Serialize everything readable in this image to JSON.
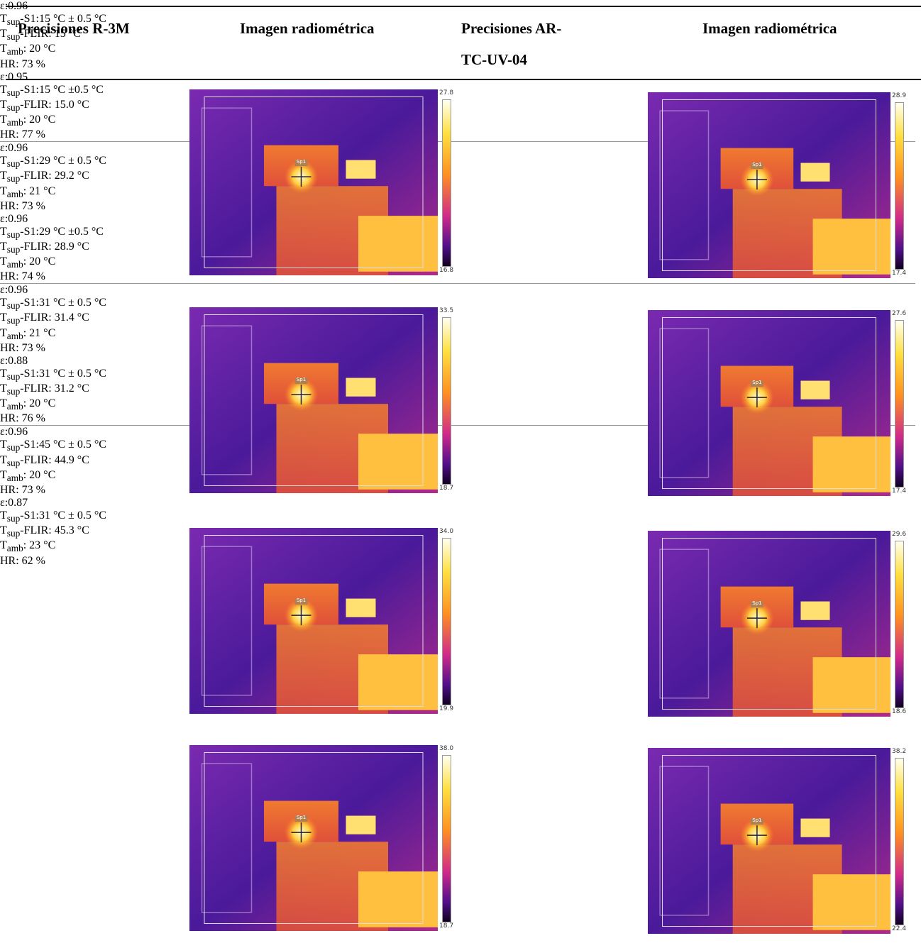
{
  "table": {
    "header": [
      "Precisiones R-3M",
      "Imagen radiométrica",
      "Precisiones AR-TC-UV-04",
      "Imagen radiométrica"
    ],
    "rows": [
      {
        "r3m": [
          "ε:0.96",
          {
            "t": "T",
            "sub": "sup",
            "rest": "-S1:15 °C ± 0.5 °C"
          },
          {
            "t": "T",
            "sub": "sup",
            "rest": "-FLIR: 15 °C"
          },
          {
            "t": "T",
            "sub": "amb",
            "rest": ": 20 °C"
          },
          "HR: 73 %"
        ],
        "img1": {
          "max": "27.8",
          "min": "16.8",
          "spot": "Sp1"
        },
        "ar": [
          "ε:0.95",
          {
            "t": "T",
            "sub": "sup",
            "rest": "-S1:15 °C ±0.5 °C"
          },
          {
            "t": "T",
            "sub": "sup",
            "rest": "-FLIR: 15.0 °C"
          },
          {
            "t": "T",
            "sub": "amb",
            "rest": ": 20 °C"
          },
          "HR: 77 %"
        ],
        "img2": {
          "max": "28.9",
          "min": "17.4",
          "spot": "Sp1"
        }
      },
      {
        "r3m": [
          "ε:0.96",
          {
            "t": "T",
            "sub": "sup",
            "rest": "-S1:29 °C ± 0.5 °C"
          },
          {
            "t": "T",
            "sub": "sup",
            "rest": "-FLIR: 29.2 °C"
          },
          {
            "t": "T",
            "sub": "amb",
            "rest": ": 21 °C"
          },
          "HR: 73 %"
        ],
        "img1": {
          "max": "33.5",
          "min": "18.7",
          "spot": "Sp1"
        },
        "ar": [
          "ε:0.96",
          {
            "t": "T",
            "sub": "sup",
            "rest": "-S1:29 °C ±0.5 °C"
          },
          {
            "t": "T",
            "sub": "sup",
            "rest": "-FLIR: 28.9 °C"
          },
          {
            "t": "T",
            "sub": "amb",
            "rest": ": 20 °C"
          },
          "HR: 74 %"
        ],
        "img2": {
          "max": "27.6",
          "min": "17.4",
          "spot": "Sp1"
        }
      },
      {
        "r3m": [
          "ε:0.96",
          {
            "t": "T",
            "sub": "sup",
            "rest": "-S1:31 °C ± 0.5 °C"
          },
          {
            "t": "T",
            "sub": "sup",
            "rest": "-FLIR: 31.4 °C"
          },
          {
            "t": "T",
            "sub": "amb",
            "rest": ": 21 °C"
          },
          "HR: 73 %"
        ],
        "img1": {
          "max": "34.0",
          "min": "19.9",
          "spot": "Sp1"
        },
        "ar": [
          "ε:0.88",
          {
            "t": "T",
            "sub": "sup",
            "rest": "-S1:31 °C ± 0.5 °C"
          },
          {
            "t": "T",
            "sub": "sup",
            "rest": "-FLIR: 31.2 °C"
          },
          {
            "t": "T",
            "sub": "amb",
            "rest": ": 20 °C"
          },
          "HR: 76 %"
        ],
        "img2": {
          "max": "29.6",
          "min": "18.6",
          "spot": "Sp1"
        }
      },
      {
        "r3m": [
          "ε:0.96",
          {
            "t": "T",
            "sub": "sup",
            "rest": "-S1:45 °C ± 0.5 °C"
          },
          {
            "t": "T",
            "sub": "sup",
            "rest": "-FLIR: 44.9 °C"
          },
          {
            "t": "T",
            "sub": "amb",
            "rest": ": 20 °C"
          },
          "HR: 73 %"
        ],
        "img1": {
          "max": "38.0",
          "min": "18.7",
          "spot": "Sp1"
        },
        "ar": [
          "ε:0.87",
          {
            "t": "T",
            "sub": "sup",
            "rest": "-S1:31 °C ± 0.5 °C"
          },
          {
            "t": "T",
            "sub": "sup",
            "rest": "-FLIR: 45.3 °C"
          },
          {
            "t": "T",
            "sub": "amb",
            "rest": ": 23 °C"
          },
          "HR: 62 %"
        ],
        "img2": {
          "max": "38.2",
          "min": "22.4",
          "spot": "Sp1"
        }
      }
    ]
  }
}
